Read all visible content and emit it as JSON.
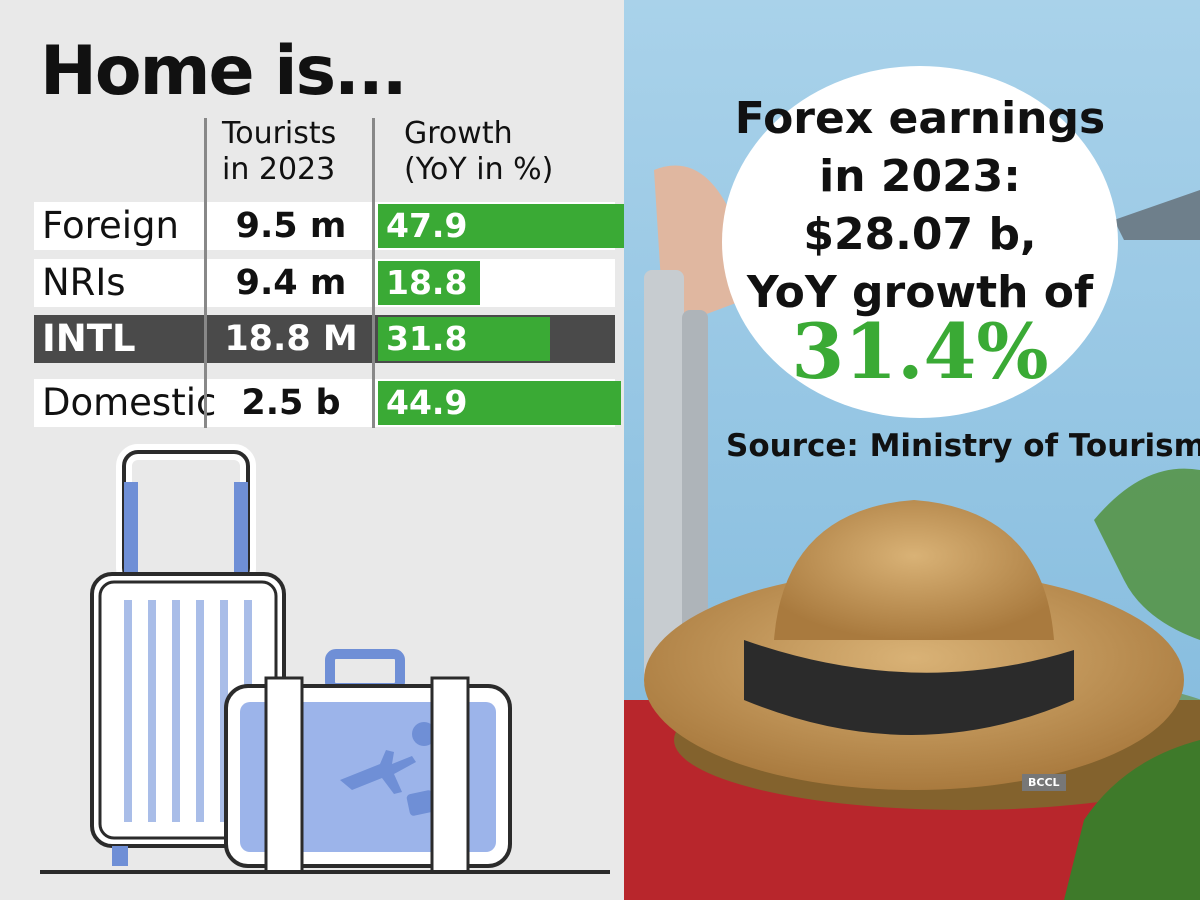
{
  "title": "Home is...",
  "headers": {
    "tourists": "Tourists\nin 2023",
    "growth": "Growth\n(YoY in %)"
  },
  "chart_data": {
    "type": "table",
    "columns": [
      "Tourists in 2023",
      "Growth (YoY in %)"
    ],
    "rows": [
      {
        "label": "Foreign",
        "tourists": "9.5 m",
        "growth": 47.9,
        "growth_label": "47.9",
        "highlight": false
      },
      {
        "label": "NRIs",
        "tourists": "9.4 m",
        "growth": 18.8,
        "growth_label": "18.8",
        "highlight": false
      },
      {
        "label": "INTL",
        "tourists": "18.8 M",
        "growth": 31.8,
        "growth_label": "31.8",
        "highlight": true
      },
      {
        "label": "Domestic",
        "tourists": "2.5 b",
        "growth": 44.9,
        "growth_label": "44.9",
        "highlight": false
      }
    ],
    "bar_max": 50,
    "bar_color": "#3aaa35"
  },
  "forex": {
    "line1": "Forex earnings",
    "line2": "in 2023:",
    "line3": "$28.07 b,",
    "line4": "YoY growth of",
    "percent": "31.4%"
  },
  "source": "Source: Ministry of Tourism",
  "photo_credit": "BCCL",
  "colors": {
    "accent_green": "#3aaa35",
    "sky": "#9ecbe6",
    "suitcase_red": "#b8262c",
    "straw": "#c9a064"
  }
}
